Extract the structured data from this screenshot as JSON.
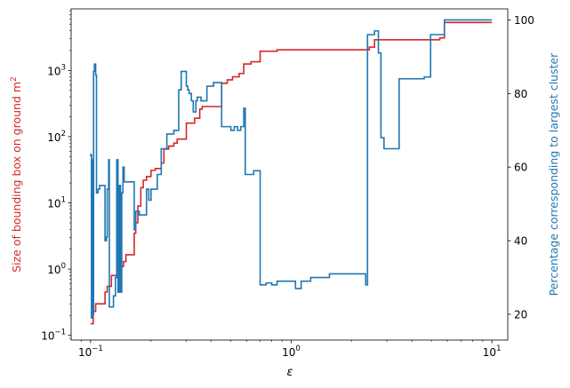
{
  "chart_data": {
    "type": "line",
    "xlabel": "ε",
    "x_scale": "log",
    "xlim": [
      0.08,
      12
    ],
    "x_ticks": [
      {
        "value": 0.1,
        "base": "10",
        "exp": "−1"
      },
      {
        "value": 1,
        "base": "10",
        "exp": "0"
      },
      {
        "value": 10,
        "base": "10",
        "exp": "1"
      }
    ],
    "left_axis": {
      "label_text": "Size of bounding box on ground m",
      "label_sup": "2",
      "color": "#d62728",
      "scale": "log",
      "ylim": [
        0.085,
        8500
      ],
      "ticks": [
        {
          "value": 0.1,
          "base": "10",
          "exp": "−1"
        },
        {
          "value": 1,
          "base": "10",
          "exp": "0"
        },
        {
          "value": 10,
          "base": "10",
          "exp": "1"
        },
        {
          "value": 100,
          "base": "10",
          "exp": "2"
        },
        {
          "value": 1000,
          "base": "10",
          "exp": "3"
        }
      ]
    },
    "right_axis": {
      "label": "Percentage corresponding to largest cluster",
      "color": "#1f77b4",
      "scale": "linear",
      "ylim": [
        13,
        103
      ],
      "ticks": [
        20,
        40,
        60,
        80,
        100
      ]
    },
    "series": [
      {
        "axis": "left",
        "color": "#d62728",
        "points": [
          [
            0.1,
            0.15
          ],
          [
            0.103,
            0.15
          ],
          [
            0.103,
            0.23
          ],
          [
            0.106,
            0.23
          ],
          [
            0.106,
            0.3
          ],
          [
            0.118,
            0.3
          ],
          [
            0.118,
            0.45
          ],
          [
            0.121,
            0.45
          ],
          [
            0.121,
            0.55
          ],
          [
            0.127,
            0.55
          ],
          [
            0.127,
            0.8
          ],
          [
            0.137,
            0.8
          ],
          [
            0.137,
            1.1
          ],
          [
            0.146,
            1.1
          ],
          [
            0.146,
            1.3
          ],
          [
            0.15,
            1.3
          ],
          [
            0.15,
            1.65
          ],
          [
            0.165,
            1.65
          ],
          [
            0.165,
            3.5
          ],
          [
            0.168,
            3.5
          ],
          [
            0.168,
            5
          ],
          [
            0.172,
            5
          ],
          [
            0.172,
            9
          ],
          [
            0.178,
            9
          ],
          [
            0.178,
            17
          ],
          [
            0.183,
            17
          ],
          [
            0.183,
            22
          ],
          [
            0.19,
            22
          ],
          [
            0.19,
            25
          ],
          [
            0.2,
            25
          ],
          [
            0.2,
            31
          ],
          [
            0.21,
            31
          ],
          [
            0.21,
            33
          ],
          [
            0.225,
            33
          ],
          [
            0.225,
            40
          ],
          [
            0.232,
            40
          ],
          [
            0.232,
            65
          ],
          [
            0.245,
            65
          ],
          [
            0.245,
            72
          ],
          [
            0.26,
            72
          ],
          [
            0.26,
            80
          ],
          [
            0.27,
            80
          ],
          [
            0.27,
            92
          ],
          [
            0.3,
            92
          ],
          [
            0.3,
            160
          ],
          [
            0.33,
            160
          ],
          [
            0.33,
            190
          ],
          [
            0.35,
            190
          ],
          [
            0.35,
            260
          ],
          [
            0.36,
            260
          ],
          [
            0.36,
            285
          ],
          [
            0.45,
            285
          ],
          [
            0.45,
            640
          ],
          [
            0.48,
            640
          ],
          [
            0.48,
            720
          ],
          [
            0.51,
            720
          ],
          [
            0.51,
            800
          ],
          [
            0.55,
            800
          ],
          [
            0.55,
            900
          ],
          [
            0.58,
            900
          ],
          [
            0.58,
            1250
          ],
          [
            0.63,
            1250
          ],
          [
            0.63,
            1350
          ],
          [
            0.7,
            1350
          ],
          [
            0.7,
            1950
          ],
          [
            0.85,
            1950
          ],
          [
            0.85,
            2050
          ],
          [
            2.45,
            2050
          ],
          [
            2.45,
            2250
          ],
          [
            2.6,
            2250
          ],
          [
            2.6,
            2900
          ],
          [
            5.5,
            2900
          ],
          [
            5.5,
            3100
          ],
          [
            5.8,
            3100
          ],
          [
            5.8,
            5300
          ],
          [
            10,
            5300
          ]
        ]
      },
      {
        "axis": "right",
        "color": "#1f77b4",
        "points": [
          [
            0.1,
            63
          ],
          [
            0.1,
            63.4
          ],
          [
            0.101,
            63.4
          ],
          [
            0.101,
            19
          ],
          [
            0.102,
            19
          ],
          [
            0.102,
            62
          ],
          [
            0.1025,
            62
          ],
          [
            0.1025,
            20
          ],
          [
            0.1035,
            20
          ],
          [
            0.1035,
            86
          ],
          [
            0.1045,
            86
          ],
          [
            0.1045,
            88
          ],
          [
            0.106,
            88
          ],
          [
            0.106,
            85
          ],
          [
            0.107,
            85
          ],
          [
            0.107,
            53
          ],
          [
            0.109,
            53
          ],
          [
            0.109,
            54
          ],
          [
            0.111,
            54
          ],
          [
            0.111,
            55
          ],
          [
            0.118,
            55
          ],
          [
            0.118,
            40
          ],
          [
            0.12,
            40
          ],
          [
            0.12,
            41
          ],
          [
            0.121,
            41
          ],
          [
            0.121,
            54
          ],
          [
            0.123,
            54
          ],
          [
            0.123,
            62
          ],
          [
            0.124,
            62
          ],
          [
            0.124,
            22
          ],
          [
            0.13,
            22
          ],
          [
            0.13,
            25
          ],
          [
            0.133,
            25
          ],
          [
            0.133,
            30
          ],
          [
            0.135,
            30
          ],
          [
            0.135,
            62
          ],
          [
            0.137,
            62
          ],
          [
            0.137,
            26
          ],
          [
            0.139,
            26
          ],
          [
            0.139,
            55
          ],
          [
            0.141,
            55
          ],
          [
            0.141,
            26
          ],
          [
            0.143,
            26
          ],
          [
            0.143,
            53
          ],
          [
            0.145,
            53
          ],
          [
            0.145,
            60
          ],
          [
            0.147,
            60
          ],
          [
            0.147,
            56
          ],
          [
            0.165,
            56
          ],
          [
            0.165,
            43
          ],
          [
            0.168,
            43
          ],
          [
            0.168,
            48
          ],
          [
            0.175,
            48
          ],
          [
            0.175,
            47
          ],
          [
            0.19,
            47
          ],
          [
            0.19,
            54
          ],
          [
            0.195,
            54
          ],
          [
            0.195,
            51
          ],
          [
            0.2,
            51
          ],
          [
            0.2,
            54
          ],
          [
            0.215,
            54
          ],
          [
            0.215,
            58
          ],
          [
            0.225,
            58
          ],
          [
            0.225,
            65
          ],
          [
            0.24,
            65
          ],
          [
            0.24,
            69
          ],
          [
            0.26,
            69
          ],
          [
            0.26,
            70
          ],
          [
            0.275,
            70
          ],
          [
            0.275,
            81
          ],
          [
            0.283,
            81
          ],
          [
            0.283,
            86
          ],
          [
            0.3,
            86
          ],
          [
            0.3,
            82
          ],
          [
            0.305,
            82
          ],
          [
            0.305,
            81
          ],
          [
            0.31,
            81
          ],
          [
            0.31,
            80
          ],
          [
            0.318,
            80
          ],
          [
            0.318,
            78
          ],
          [
            0.325,
            78
          ],
          [
            0.325,
            75
          ],
          [
            0.335,
            75
          ],
          [
            0.335,
            78
          ],
          [
            0.34,
            78
          ],
          [
            0.34,
            79
          ],
          [
            0.355,
            79
          ],
          [
            0.355,
            78
          ],
          [
            0.38,
            78
          ],
          [
            0.38,
            82
          ],
          [
            0.41,
            82
          ],
          [
            0.41,
            83
          ],
          [
            0.45,
            83
          ],
          [
            0.45,
            71
          ],
          [
            0.5,
            71
          ],
          [
            0.5,
            70
          ],
          [
            0.52,
            70
          ],
          [
            0.52,
            71
          ],
          [
            0.54,
            71
          ],
          [
            0.54,
            70
          ],
          [
            0.56,
            70
          ],
          [
            0.56,
            71
          ],
          [
            0.58,
            71
          ],
          [
            0.58,
            76
          ],
          [
            0.59,
            76
          ],
          [
            0.59,
            58
          ],
          [
            0.65,
            58
          ],
          [
            0.65,
            59
          ],
          [
            0.7,
            59
          ],
          [
            0.7,
            28
          ],
          [
            0.75,
            28
          ],
          [
            0.75,
            28.5
          ],
          [
            0.8,
            28.5
          ],
          [
            0.8,
            28
          ],
          [
            0.85,
            28
          ],
          [
            0.85,
            29
          ],
          [
            1.05,
            29
          ],
          [
            1.05,
            27
          ],
          [
            1.12,
            27
          ],
          [
            1.12,
            29
          ],
          [
            1.25,
            29
          ],
          [
            1.25,
            30
          ],
          [
            1.55,
            30
          ],
          [
            1.55,
            31
          ],
          [
            2.35,
            31
          ],
          [
            2.35,
            28
          ],
          [
            2.4,
            28
          ],
          [
            2.4,
            96
          ],
          [
            2.6,
            96
          ],
          [
            2.6,
            97
          ],
          [
            2.72,
            97
          ],
          [
            2.72,
            91
          ],
          [
            2.8,
            91
          ],
          [
            2.8,
            68
          ],
          [
            2.9,
            68
          ],
          [
            2.9,
            65
          ],
          [
            3.45,
            65
          ],
          [
            3.45,
            84
          ],
          [
            4.6,
            84
          ],
          [
            4.6,
            84.5
          ],
          [
            4.95,
            84.5
          ],
          [
            4.95,
            96
          ],
          [
            5.8,
            96
          ],
          [
            5.8,
            100
          ],
          [
            10,
            100
          ]
        ]
      }
    ]
  }
}
